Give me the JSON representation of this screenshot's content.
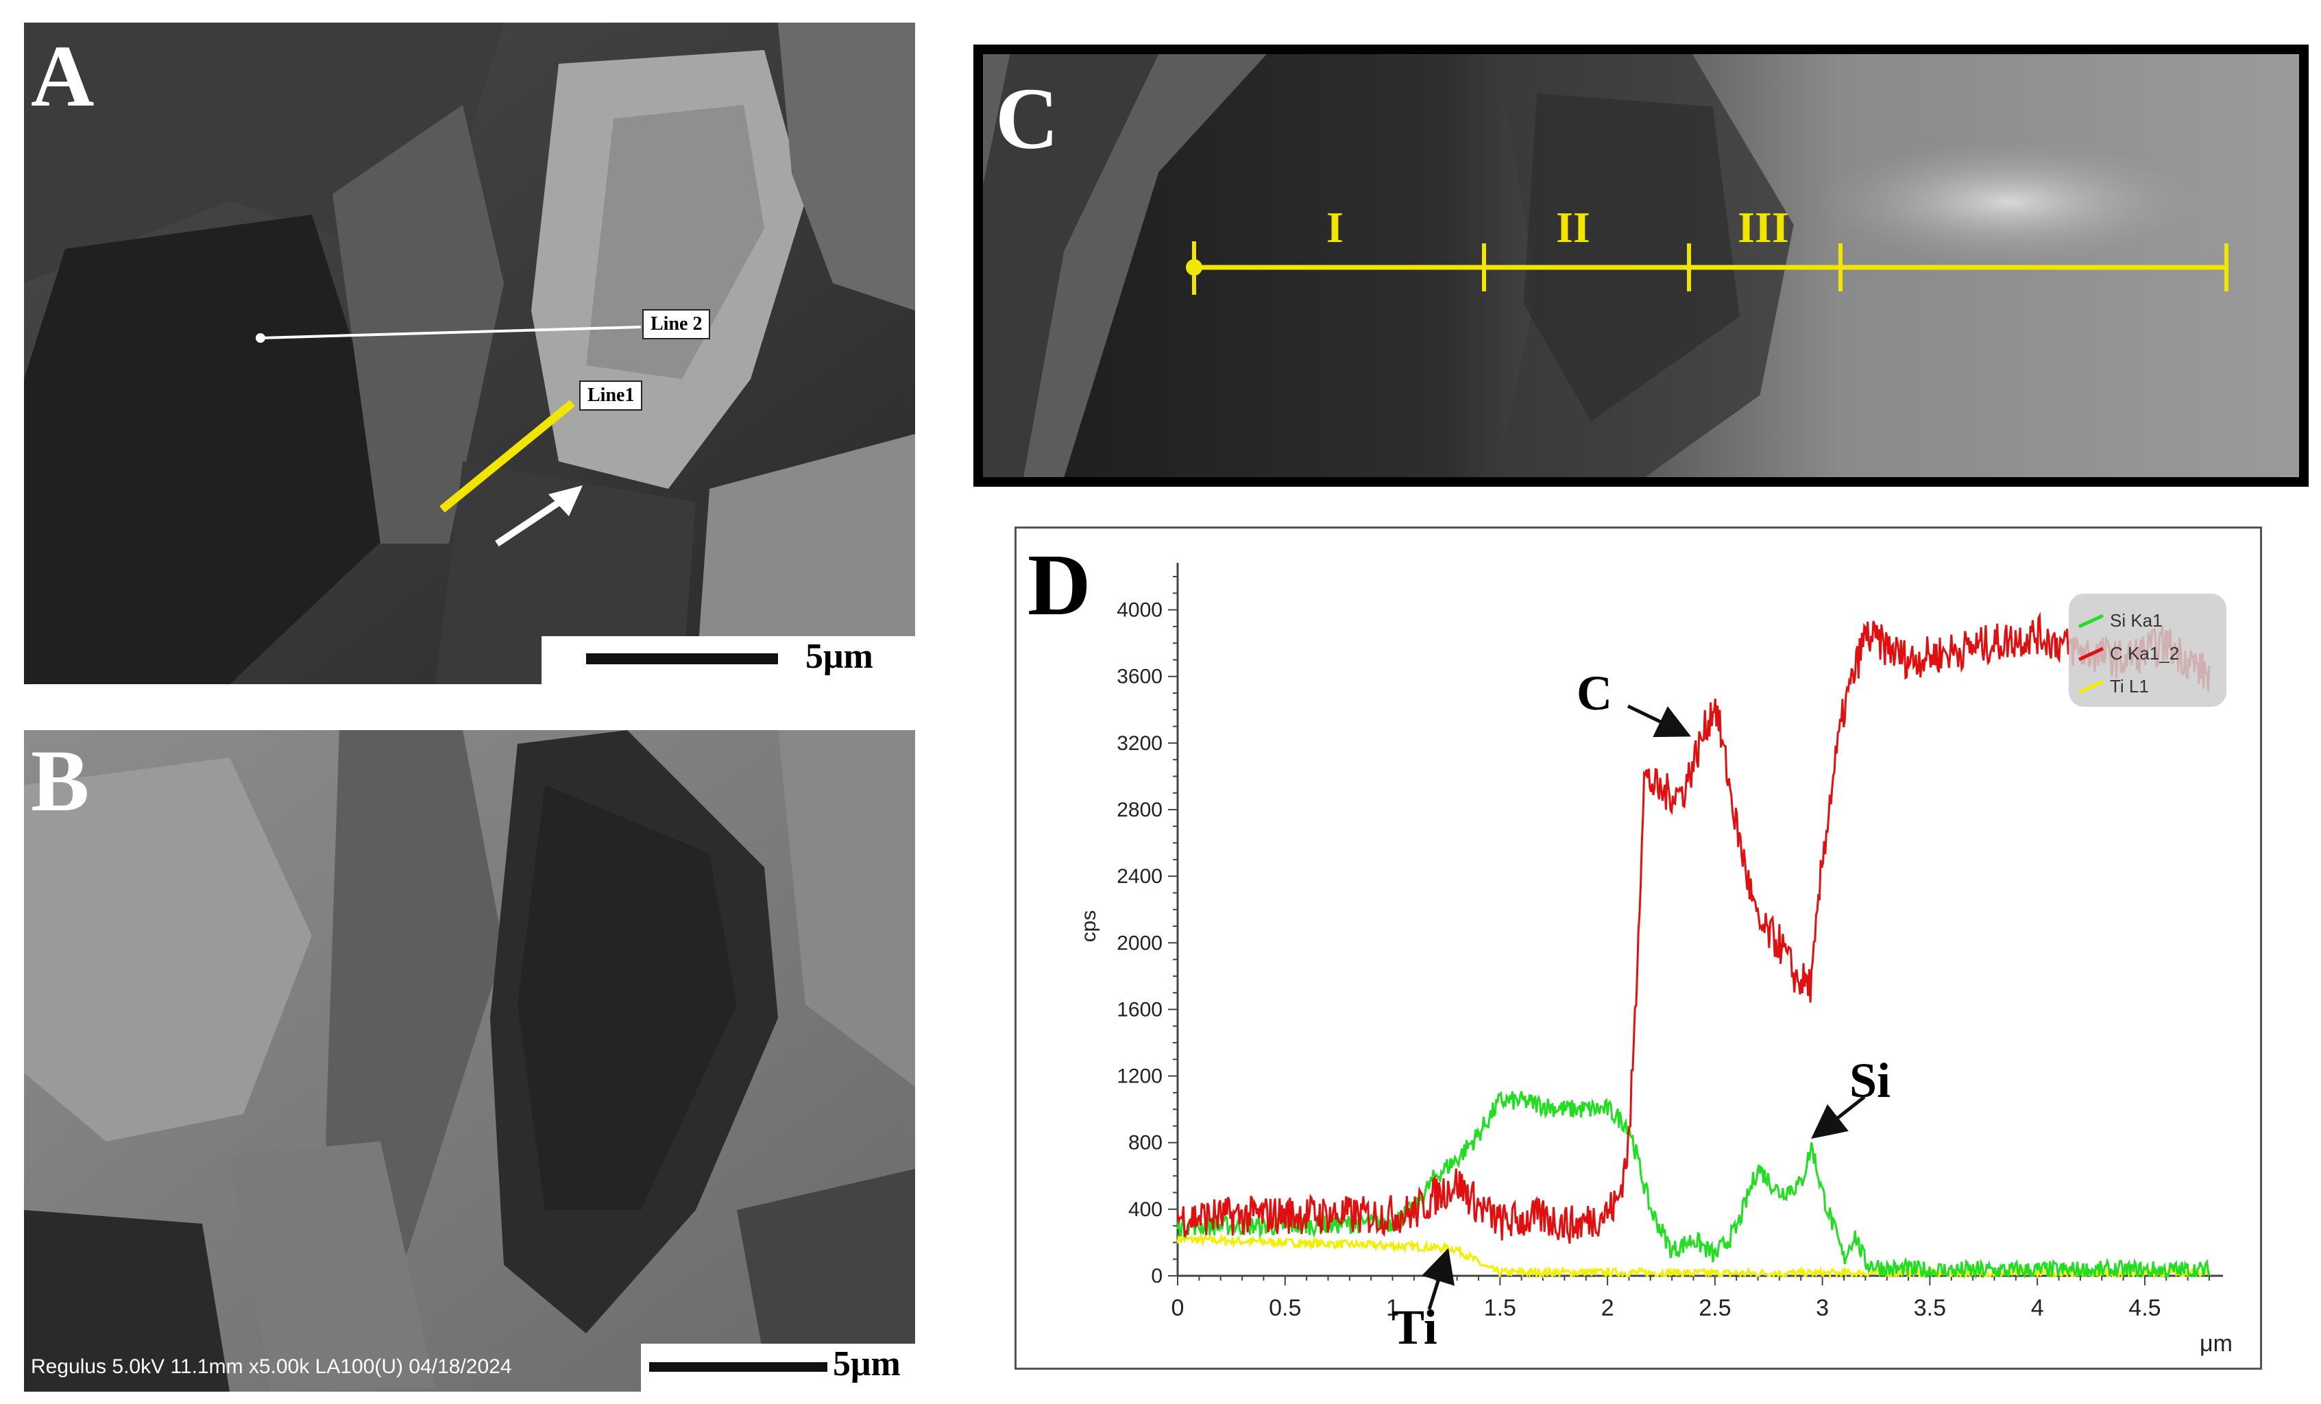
{
  "panels": {
    "a": {
      "letter": "A",
      "scale_text": "5μm",
      "line1_label": "Line1",
      "line2_label": "Line 2"
    },
    "b": {
      "letter": "B",
      "scale_text": "5μm",
      "meta": "Regulus 5.0kV 11.1mm x5.00k LA100(U) 04/18/2024"
    },
    "c": {
      "letter": "C",
      "segments": [
        "I",
        "II",
        "III"
      ]
    },
    "d": {
      "letter": "D"
    }
  },
  "annotations": {
    "c": "C",
    "si": "Si",
    "ti": "Ti"
  },
  "colors": {
    "C": "#e01010",
    "Si": "#22dd22",
    "Ti": "#f0f000",
    "yellow_line": "#f2e600"
  },
  "chart_data": {
    "type": "line",
    "title": "",
    "ylabel": "cps",
    "xlabel": "μm",
    "xlim": [
      0,
      4.8
    ],
    "ylim": [
      0,
      4200
    ],
    "x_ticks": [
      "0",
      "0.5",
      "1",
      "1.5",
      "2",
      "2.5",
      "3",
      "3.5",
      "4",
      "4.5"
    ],
    "y_ticks": [
      "0",
      "400",
      "800",
      "1200",
      "1600",
      "2000",
      "2400",
      "2800",
      "3200",
      "3600",
      "4000"
    ],
    "legend": {
      "position": "top-right",
      "entries": [
        "Si Ka1",
        "C Ka1_2",
        "Ti L1"
      ]
    },
    "series": [
      {
        "name": "C Ka1_2",
        "color": "#e01010",
        "x": [
          0,
          0.3,
          0.6,
          0.9,
          1.1,
          1.2,
          1.3,
          1.4,
          1.5,
          1.7,
          1.85,
          2.0,
          2.05,
          2.1,
          2.13,
          2.17,
          2.25,
          2.35,
          2.5,
          2.6,
          2.7,
          2.8,
          2.88,
          2.95,
          3.0,
          3.05,
          3.1,
          3.2,
          3.4,
          3.6,
          3.8,
          4.0,
          4.2,
          4.4,
          4.6,
          4.8
        ],
        "y": [
          350,
          360,
          370,
          360,
          380,
          480,
          560,
          420,
          320,
          350,
          300,
          380,
          450,
          800,
          1600,
          3000,
          2900,
          2900,
          3450,
          2700,
          2100,
          2000,
          1780,
          1750,
          2500,
          3000,
          3400,
          3850,
          3700,
          3750,
          3800,
          3850,
          3750,
          3700,
          3800,
          3600
        ]
      },
      {
        "name": "Si Ka1",
        "color": "#22dd22",
        "x": [
          0,
          0.5,
          1.0,
          1.1,
          1.2,
          1.3,
          1.4,
          1.5,
          1.6,
          1.8,
          2.0,
          2.1,
          2.2,
          2.3,
          2.4,
          2.5,
          2.6,
          2.7,
          2.8,
          2.9,
          2.95,
          3.0,
          3.1,
          3.15,
          3.2,
          3.3,
          3.5,
          4.0,
          4.5,
          4.8
        ],
        "y": [
          300,
          300,
          320,
          400,
          600,
          700,
          850,
          1050,
          1050,
          1000,
          1000,
          900,
          400,
          150,
          220,
          120,
          280,
          650,
          500,
          550,
          780,
          500,
          100,
          250,
          80,
          40,
          30,
          30,
          30,
          30
        ]
      },
      {
        "name": "Ti L1",
        "color": "#f0f000",
        "x": [
          0,
          0.5,
          1.0,
          1.2,
          1.3,
          1.35,
          1.45,
          1.5,
          2.0,
          2.5,
          3.0,
          3.5,
          4.0,
          4.5,
          4.8
        ],
        "y": [
          220,
          200,
          180,
          170,
          160,
          120,
          40,
          20,
          20,
          15,
          15,
          15,
          15,
          15,
          15
        ]
      }
    ]
  }
}
